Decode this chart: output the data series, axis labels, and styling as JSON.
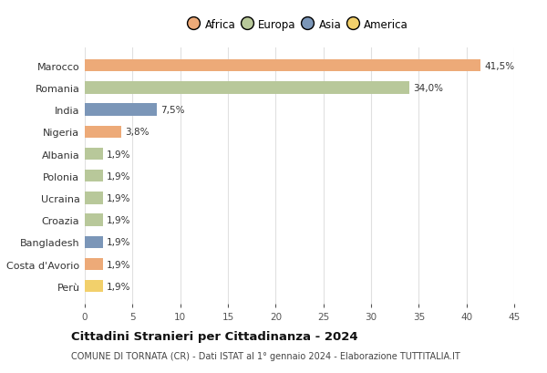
{
  "categories": [
    "Marocco",
    "Romania",
    "India",
    "Nigeria",
    "Albania",
    "Polonia",
    "Ucraina",
    "Croazia",
    "Bangladesh",
    "Costa d'Avorio",
    "Perù"
  ],
  "values": [
    41.5,
    34.0,
    7.5,
    3.8,
    1.9,
    1.9,
    1.9,
    1.9,
    1.9,
    1.9,
    1.9
  ],
  "labels": [
    "41,5%",
    "34,0%",
    "7,5%",
    "3,8%",
    "1,9%",
    "1,9%",
    "1,9%",
    "1,9%",
    "1,9%",
    "1,9%",
    "1,9%"
  ],
  "continents": [
    "Africa",
    "Europa",
    "Asia",
    "Africa",
    "Europa",
    "Europa",
    "Europa",
    "Europa",
    "Asia",
    "Africa",
    "America"
  ],
  "colors": {
    "Africa": "#EDAA78",
    "Europa": "#B8C89A",
    "Asia": "#7B96B8",
    "America": "#F2D06B"
  },
  "legend_order": [
    "Africa",
    "Europa",
    "Asia",
    "America"
  ],
  "xlim": [
    0,
    45
  ],
  "xticks": [
    0,
    5,
    10,
    15,
    20,
    25,
    30,
    35,
    40,
    45
  ],
  "title": "Cittadini Stranieri per Cittadinanza - 2024",
  "subtitle": "COMUNE DI TORNATA (CR) - Dati ISTAT al 1° gennaio 2024 - Elaborazione TUTTITALIA.IT",
  "background_color": "#ffffff",
  "bar_height": 0.55,
  "grid_color": "#e0e0e0"
}
